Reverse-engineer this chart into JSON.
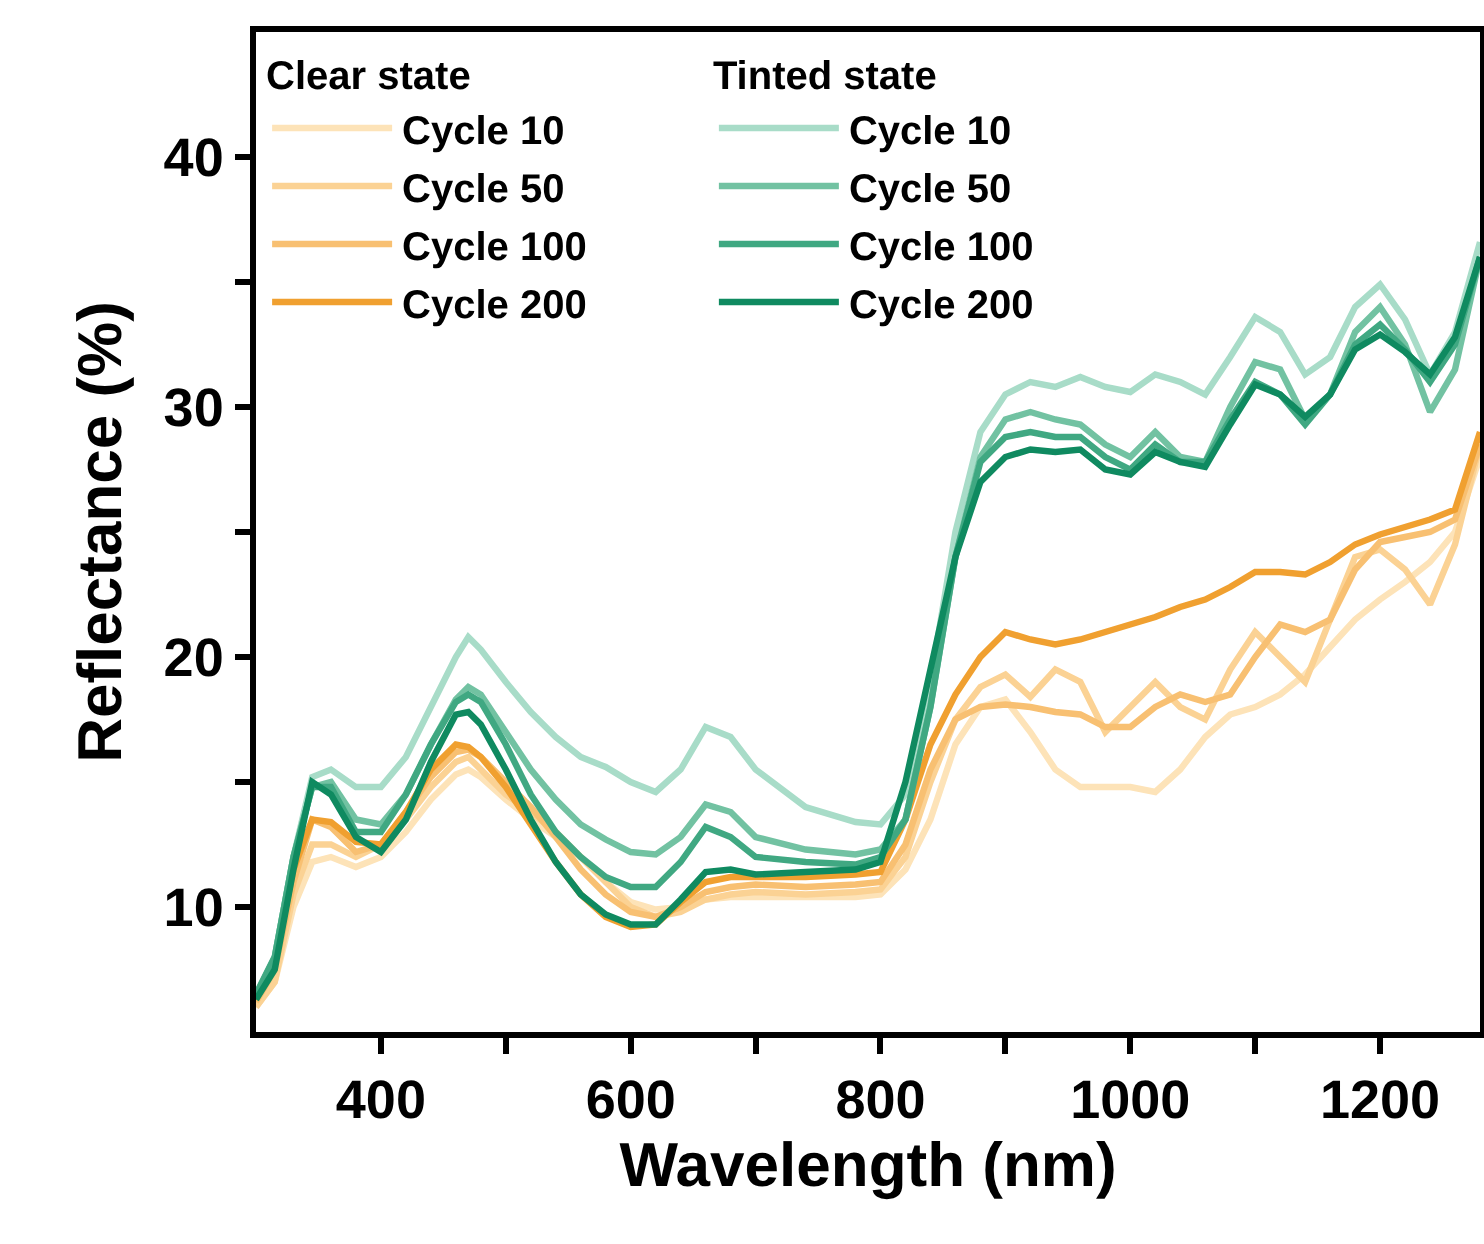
{
  "chart_data": {
    "type": "line",
    "xlabel": "Wavelength (nm)",
    "ylabel": "Reflectance (%)",
    "legend_title": [
      "Clear state",
      "Tinted state"
    ],
    "legend": "top left",
    "grid": false,
    "marker": "none",
    "line_style": "solid",
    "xlim": [
      300,
      1280
    ],
    "xticks": [
      400,
      {
        "value": 500,
        "label": null
      },
      600,
      {
        "value": 700,
        "label": null
      },
      800,
      {
        "value": 900,
        "label": null
      },
      1000,
      {
        "value": 1100,
        "label": null
      },
      1200
    ],
    "ylim": [
      5,
      45
    ],
    "yticks": [
      10,
      {
        "value": 15,
        "label": null
      },
      20,
      {
        "value": 25,
        "label": null
      },
      30,
      {
        "value": 35,
        "label": null
      },
      40
    ],
    "x": [
      300,
      315,
      330,
      345,
      360,
      380,
      400,
      420,
      440,
      460,
      470,
      480,
      500,
      520,
      540,
      560,
      580,
      600,
      620,
      640,
      660,
      680,
      700,
      740,
      780,
      800,
      820,
      840,
      860,
      880,
      900,
      920,
      940,
      960,
      980,
      1000,
      1020,
      1040,
      1060,
      1080,
      1100,
      1120,
      1140,
      1160,
      1180,
      1200,
      1220,
      1240,
      1260,
      1280
    ],
    "series": [
      {
        "name": "Cycle 10",
        "color": "#fde3b8",
        "values": [
          6,
          7,
          10,
          11.8,
          12,
          11.6,
          12,
          13,
          14.3,
          15.3,
          15.5,
          15.2,
          14.3,
          13.5,
          12.8,
          12,
          11,
          10.2,
          9.9,
          10,
          10.3,
          10.4,
          10.4,
          10.4,
          10.4,
          10.5,
          11.5,
          13.5,
          16.5,
          18,
          18.3,
          17,
          15.5,
          14.8,
          14.8,
          14.8,
          14.6,
          15.5,
          16.8,
          17.7,
          18,
          18.5,
          19.3,
          20.4,
          21.5,
          22.3,
          23,
          23.8,
          25,
          28
        ]
      },
      {
        "name": "Cycle 50",
        "color": "#fbd294",
        "values": [
          6,
          7,
          10.5,
          12.5,
          12.5,
          12,
          12.5,
          13.5,
          14.8,
          15.8,
          16,
          15.5,
          14.5,
          13.8,
          13,
          12,
          11,
          10,
          9.6,
          9.8,
          10.3,
          10.5,
          10.6,
          10.5,
          10.6,
          10.7,
          12,
          15,
          17.5,
          18.8,
          19.3,
          18.4,
          19.5,
          19,
          17,
          18,
          19,
          18,
          17.5,
          19.5,
          21,
          20,
          19,
          21.5,
          24,
          24.3,
          23.5,
          22.1,
          24.5,
          28.5
        ]
      },
      {
        "name": "Cycle 100",
        "color": "#f8c072",
        "values": [
          6.2,
          7.5,
          11,
          13.5,
          13.2,
          12.2,
          12.5,
          13.8,
          15.2,
          16.2,
          16.3,
          16,
          15,
          14,
          12.8,
          11.5,
          10.5,
          9.8,
          9.6,
          10,
          10.6,
          10.8,
          10.9,
          10.8,
          10.9,
          11,
          12.5,
          15.5,
          17.5,
          18,
          18.1,
          18,
          17.8,
          17.7,
          17.2,
          17.2,
          18,
          18.5,
          18.2,
          18.5,
          20,
          21.3,
          21,
          21.5,
          23.5,
          24.6,
          24.8,
          25,
          25.5,
          28.5
        ]
      },
      {
        "name": "Cycle 200",
        "color": "#f0a030",
        "values": [
          6.3,
          7.8,
          11.5,
          13.5,
          13.4,
          12.6,
          12.5,
          13.8,
          15.5,
          16.5,
          16.4,
          16,
          14.8,
          13.3,
          11.8,
          10.5,
          9.6,
          9.2,
          9.3,
          10.2,
          11,
          11.2,
          11.2,
          11.2,
          11.3,
          11.4,
          13.5,
          16.5,
          18.5,
          20,
          21,
          20.7,
          20.5,
          20.7,
          21,
          21.3,
          21.6,
          22,
          22.3,
          22.8,
          23.4,
          23.4,
          23.3,
          23.8,
          24.5,
          24.9,
          25.2,
          25.5,
          25.9,
          29
        ]
      },
      {
        "name": "Cycle 10",
        "color": "#a8dcc8",
        "values": [
          6.5,
          8,
          12,
          15.2,
          15.5,
          14.8,
          14.8,
          16,
          18,
          20,
          20.8,
          20.3,
          19,
          17.8,
          16.8,
          16,
          15.6,
          15,
          14.6,
          15.5,
          17.2,
          16.8,
          15.5,
          14,
          13.4,
          13.3,
          14.5,
          19,
          25,
          29,
          30.5,
          31,
          30.8,
          31.2,
          30.8,
          30.6,
          31.3,
          31,
          30.5,
          32,
          33.6,
          33,
          31.3,
          32,
          34,
          34.9,
          33.5,
          31.3,
          33,
          36.6
        ]
      },
      {
        "name": "Cycle 50",
        "color": "#72c2a2",
        "values": [
          6.5,
          8,
          12,
          14.8,
          15,
          13.5,
          13.3,
          14.5,
          16.5,
          18.3,
          18.8,
          18.5,
          17,
          15.5,
          14.3,
          13.3,
          12.7,
          12.2,
          12.1,
          12.8,
          14.1,
          13.8,
          12.8,
          12.3,
          12.1,
          12.3,
          13.5,
          18,
          24,
          28,
          29.5,
          29.8,
          29.5,
          29.3,
          28.5,
          28,
          29,
          28,
          27.8,
          30,
          31.8,
          31.5,
          29.5,
          30.5,
          33,
          34,
          32.5,
          29.8,
          31.5,
          36
        ]
      },
      {
        "name": "Cycle 100",
        "color": "#40a882",
        "values": [
          6.5,
          8,
          12,
          14.8,
          14.8,
          13,
          13,
          14.5,
          16.5,
          18.2,
          18.5,
          18.2,
          16.5,
          14.5,
          13,
          12,
          11.2,
          10.8,
          10.8,
          11.8,
          13.2,
          12.8,
          12,
          11.8,
          11.7,
          12,
          13.5,
          18,
          24,
          27.8,
          28.8,
          29,
          28.8,
          28.8,
          28,
          27.5,
          28.5,
          27.8,
          27.8,
          29.5,
          31,
          30.5,
          29.3,
          30.5,
          32.5,
          33.3,
          32.3,
          31,
          32.5,
          36
        ]
      },
      {
        "name": "Cycle 200",
        "color": "#0f8a60",
        "values": [
          6.3,
          7.5,
          11.5,
          15,
          14.5,
          12.8,
          12.2,
          13.5,
          15.8,
          17.7,
          17.8,
          17.3,
          15.5,
          13.5,
          11.8,
          10.5,
          9.7,
          9.3,
          9.3,
          10.3,
          11.4,
          11.5,
          11.3,
          11.4,
          11.5,
          11.8,
          15,
          19.5,
          24,
          27,
          28,
          28.3,
          28.2,
          28.3,
          27.5,
          27.3,
          28.2,
          27.8,
          27.6,
          29.3,
          30.9,
          30.5,
          29.6,
          30.5,
          32.3,
          32.9,
          32.2,
          31.3,
          32.8,
          36
        ]
      }
    ]
  }
}
